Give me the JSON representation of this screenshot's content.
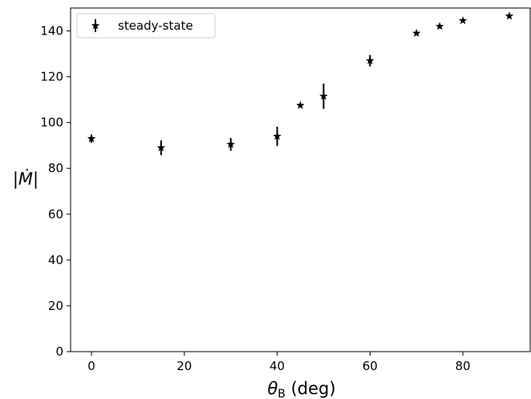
{
  "chart_data": {
    "type": "scatter",
    "title": "",
    "xlabel_symbol": "θ",
    "xlabel_subscript": "B",
    "xlabel_unit": "(deg)",
    "ylabel": "|Ṁ|",
    "xlim": [
      -4.5,
      94.5
    ],
    "ylim": [
      0,
      150
    ],
    "xticks": [
      0,
      20,
      40,
      60,
      80
    ],
    "yticks": [
      0,
      20,
      40,
      60,
      80,
      100,
      120,
      140
    ],
    "grid": false,
    "legend_position": "upper-left",
    "marker": "star",
    "color": "#000000",
    "series": [
      {
        "name": "steady-state",
        "points": [
          {
            "x": 0,
            "y": 93.0,
            "err": 1.8
          },
          {
            "x": 15,
            "y": 89.0,
            "err": 3.2
          },
          {
            "x": 30,
            "y": 90.5,
            "err": 2.8
          },
          {
            "x": 40,
            "y": 94.0,
            "err": 4.2
          },
          {
            "x": 45,
            "y": 107.5,
            "err": 0.9
          },
          {
            "x": 50,
            "y": 111.5,
            "err": 5.5
          },
          {
            "x": 60,
            "y": 127.0,
            "err": 2.5
          },
          {
            "x": 70,
            "y": 139.0,
            "err": 0.8
          },
          {
            "x": 75,
            "y": 142.0,
            "err": 0.8
          },
          {
            "x": 80,
            "y": 144.5,
            "err": 0.8
          },
          {
            "x": 90,
            "y": 146.5,
            "err": 0.8
          }
        ]
      }
    ]
  }
}
